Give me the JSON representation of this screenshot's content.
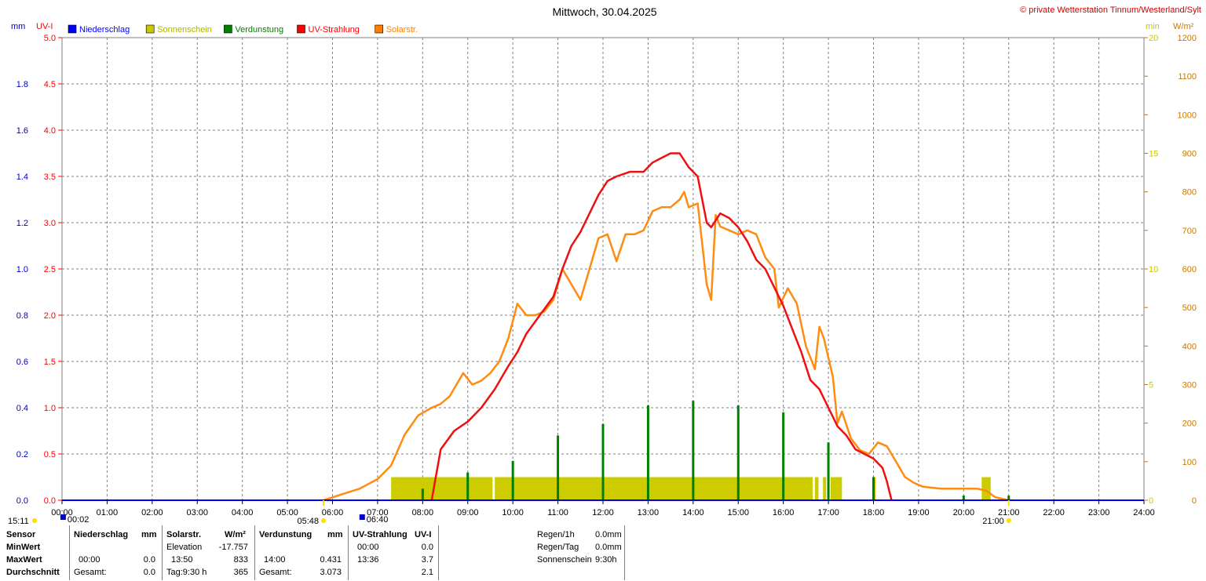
{
  "header": {
    "title": "Mittwoch, 30.04.2025",
    "copyright": "© private Wetterstation Tinnum/Westerland/Sylt",
    "left_units": [
      "mm",
      "UV-I"
    ],
    "right_units": [
      "min",
      "W/m²"
    ]
  },
  "legend": [
    {
      "label": "Niederschlag",
      "color": "#0000ff"
    },
    {
      "label": "Sonnenschein",
      "color": "#c8c800"
    },
    {
      "label": "Verdunstung",
      "color": "#008000"
    },
    {
      "label": "UV-Strahlung",
      "color": "#ff0000"
    },
    {
      "label": "Solarstr.",
      "color": "#ff8000"
    }
  ],
  "colors": {
    "grid": "#808080",
    "axis_mm": "#0000c0",
    "axis_uv": "#ff0000",
    "axis_min": "#c8c800",
    "axis_wm2": "#c87800",
    "sunshine_bar": "#cccc00",
    "evaporation": "#008000",
    "uv": "#ee1010",
    "solar": "#ff8c10",
    "baseline": "#0000ff"
  },
  "sun_events": [
    {
      "time": "15:11",
      "hour": -1,
      "kind": "sun"
    },
    {
      "time": "00:02",
      "hour": 0.033,
      "kind": "moon"
    },
    {
      "time": "05:48",
      "hour": 5.8,
      "kind": "sun"
    },
    {
      "time": "06:40",
      "hour": 6.667,
      "kind": "moon"
    },
    {
      "time": "21:00",
      "hour": 21.0,
      "kind": "sun"
    }
  ],
  "chart_data": {
    "type": "line",
    "title": "Mittwoch, 30.04.2025",
    "x_ticks": [
      "00:00",
      "01:00",
      "02:00",
      "03:00",
      "04:00",
      "05:00",
      "06:00",
      "07:00",
      "08:00",
      "09:00",
      "10:00",
      "11:00",
      "12:00",
      "13:00",
      "14:00",
      "15:00",
      "16:00",
      "17:00",
      "18:00",
      "19:00",
      "20:00",
      "21:00",
      "22:00",
      "23:00",
      "24:00"
    ],
    "xlim": [
      0,
      24
    ],
    "axes": {
      "mm": {
        "ylim": [
          0,
          2.0
        ],
        "ticks": [
          "0.0",
          "0.2",
          "0.4",
          "0.6",
          "0.8",
          "1.0",
          "1.2",
          "1.4",
          "1.6",
          "1.8"
        ]
      },
      "uv": {
        "ylim": [
          0,
          5.0
        ],
        "ticks": [
          "0.0",
          "0.5",
          "1.0",
          "1.5",
          "2.0",
          "2.5",
          "3.0",
          "3.5",
          "4.0",
          "4.5",
          "5.0"
        ]
      },
      "min": {
        "ylim": [
          0,
          20
        ],
        "ticks": [
          "0",
          "5",
          "10",
          "15",
          "20"
        ]
      },
      "wm2": {
        "ylim": [
          0,
          1200
        ],
        "ticks": [
          "0",
          "100",
          "200",
          "300",
          "400",
          "500",
          "600",
          "700",
          "800",
          "900",
          "1000",
          "1100",
          "1200"
        ]
      }
    },
    "grid": true,
    "legend_position": "top-left",
    "series": [
      {
        "name": "Solarstr.",
        "axis": "wm2",
        "x": [
          5.8,
          6.2,
          6.6,
          7.0,
          7.3,
          7.6,
          7.9,
          8.2,
          8.4,
          8.6,
          8.9,
          9.1,
          9.3,
          9.5,
          9.7,
          9.9,
          10.1,
          10.3,
          10.5,
          10.7,
          10.9,
          11.1,
          11.3,
          11.5,
          11.7,
          11.9,
          12.1,
          12.3,
          12.5,
          12.7,
          12.9,
          13.1,
          13.3,
          13.5,
          13.7,
          13.8,
          13.9,
          14.1,
          14.3,
          14.4,
          14.5,
          14.6,
          14.8,
          15.0,
          15.2,
          15.4,
          15.6,
          15.8,
          15.9,
          16.1,
          16.3,
          16.5,
          16.7,
          16.8,
          16.9,
          17.1,
          17.2,
          17.3,
          17.5,
          17.7,
          17.9,
          18.1,
          18.3,
          18.5,
          18.7,
          18.9,
          19.1,
          19.5,
          19.9,
          20.3,
          20.5,
          20.7,
          21.0
        ],
        "y": [
          0,
          15,
          30,
          55,
          90,
          170,
          220,
          240,
          250,
          270,
          330,
          300,
          310,
          330,
          360,
          420,
          510,
          480,
          480,
          490,
          520,
          600,
          560,
          520,
          600,
          680,
          690,
          620,
          690,
          690,
          700,
          750,
          760,
          760,
          780,
          800,
          760,
          770,
          560,
          520,
          740,
          710,
          700,
          690,
          700,
          690,
          630,
          600,
          500,
          550,
          510,
          400,
          340,
          450,
          420,
          320,
          200,
          230,
          160,
          130,
          120,
          150,
          140,
          100,
          60,
          45,
          35,
          30,
          30,
          30,
          25,
          8,
          0
        ]
      },
      {
        "name": "UV-Strahlung",
        "axis": "uv",
        "x": [
          8.2,
          8.4,
          8.7,
          9.0,
          9.3,
          9.6,
          9.9,
          10.1,
          10.3,
          10.6,
          10.9,
          11.1,
          11.3,
          11.5,
          11.7,
          11.9,
          12.1,
          12.3,
          12.6,
          12.9,
          13.1,
          13.3,
          13.5,
          13.7,
          13.9,
          14.1,
          14.3,
          14.4,
          14.6,
          14.8,
          15.0,
          15.2,
          15.4,
          15.6,
          15.8,
          16.0,
          16.2,
          16.4,
          16.6,
          16.8,
          17.0,
          17.2,
          17.4,
          17.6,
          17.8,
          18.0,
          18.2,
          18.3,
          18.4
        ],
        "y": [
          0,
          0.55,
          0.75,
          0.85,
          1.0,
          1.2,
          1.45,
          1.6,
          1.8,
          2.0,
          2.2,
          2.5,
          2.75,
          2.9,
          3.1,
          3.3,
          3.45,
          3.5,
          3.55,
          3.55,
          3.65,
          3.7,
          3.75,
          3.75,
          3.6,
          3.5,
          3.0,
          2.95,
          3.1,
          3.05,
          2.95,
          2.8,
          2.6,
          2.5,
          2.3,
          2.1,
          1.85,
          1.6,
          1.3,
          1.2,
          1.0,
          0.8,
          0.7,
          0.55,
          0.5,
          0.45,
          0.35,
          0.2,
          0
        ]
      },
      {
        "name": "Verdunstung",
        "axis": "mm",
        "x": [
          8.0,
          9.0,
          10.0,
          11.0,
          12.0,
          13.0,
          14.0,
          15.0,
          16.0,
          17.0,
          18.0,
          20.0,
          21.0
        ],
        "y": [
          0.05,
          0.12,
          0.17,
          0.28,
          0.33,
          0.41,
          0.43,
          0.41,
          0.38,
          0.25,
          0.1,
          0.02,
          0.02
        ]
      },
      {
        "name": "Sonnenschein",
        "axis": "min",
        "intervals": [
          [
            7.3,
            9.55,
            1.0
          ],
          [
            9.6,
            16.65,
            1.0
          ],
          [
            16.7,
            16.78,
            1.0
          ],
          [
            16.88,
            16.95,
            1.0
          ],
          [
            17.05,
            17.3,
            1.0
          ],
          [
            18.0,
            18.05,
            1.0
          ],
          [
            20.4,
            20.6,
            1.0
          ]
        ]
      },
      {
        "name": "Niederschlag",
        "axis": "mm",
        "x": [
          0,
          24
        ],
        "y": [
          0,
          0
        ]
      }
    ]
  },
  "stats": {
    "sensor": {
      "header": "Sensor",
      "rows": [
        "MinWert",
        "MaxWert",
        "Durchschnitt"
      ]
    },
    "niederschlag": {
      "header": "Niederschlag",
      "unit": "mm",
      "max_time": "00:00",
      "max_val": "0.0",
      "avg_label": "Gesamt:",
      "avg_val": "0.0"
    },
    "solar": {
      "header": "Solarstr.",
      "unit": "W/m²",
      "min_label": "Elevation",
      "min_val": "-17.757",
      "max_time": "13:50",
      "max_val": "833",
      "avg_label": "Tag:9:30 h",
      "avg_val": "365"
    },
    "verdunstung": {
      "header": "Verdunstung",
      "unit": "mm",
      "max_time": "14:00",
      "max_val": "0.431",
      "avg_label": "Gesamt:",
      "avg_val": "3.073"
    },
    "uv": {
      "header": "UV-Strahlung",
      "unit": "UV-I",
      "min_time": "00:00",
      "min_val": "0.0",
      "max_time": "13:36",
      "max_val": "3.7",
      "avg_val": "2.1"
    },
    "extra": [
      {
        "label": "Regen/1h",
        "value": "0.0mm"
      },
      {
        "label": "Regen/Tag",
        "value": "0.0mm"
      },
      {
        "label": "Sonnenschein",
        "value": "9:30h"
      }
    ]
  }
}
